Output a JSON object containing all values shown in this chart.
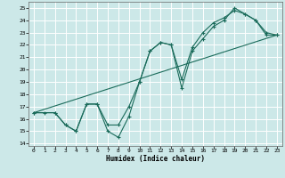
{
  "xlabel": "Humidex (Indice chaleur)",
  "xlim": [
    -0.5,
    23.5
  ],
  "ylim": [
    13.8,
    25.5
  ],
  "xticks": [
    0,
    1,
    2,
    3,
    4,
    5,
    6,
    7,
    8,
    9,
    10,
    11,
    12,
    13,
    14,
    15,
    16,
    17,
    18,
    19,
    20,
    21,
    22,
    23
  ],
  "yticks": [
    14,
    15,
    16,
    17,
    18,
    19,
    20,
    21,
    22,
    23,
    24,
    25
  ],
  "bg_color": "#cce8e8",
  "grid_color": "#ffffff",
  "line_color": "#1a6b5a",
  "line1_x": [
    0,
    1,
    2,
    3,
    4,
    5,
    6,
    7,
    8,
    9,
    10,
    11,
    12,
    13,
    14,
    15,
    16,
    17,
    18,
    19,
    20,
    21,
    22,
    23
  ],
  "line1_y": [
    16.5,
    16.5,
    16.5,
    15.5,
    15.0,
    17.2,
    17.2,
    15.0,
    14.5,
    16.2,
    19.0,
    21.5,
    22.2,
    22.0,
    18.5,
    21.5,
    22.5,
    23.5,
    24.0,
    25.0,
    24.5,
    24.0,
    23.0,
    22.8
  ],
  "line2_x": [
    0,
    2,
    3,
    4,
    5,
    6,
    7,
    8,
    9,
    10,
    11,
    12,
    13,
    14,
    15,
    16,
    17,
    18,
    19,
    20,
    21,
    22,
    23
  ],
  "line2_y": [
    16.5,
    16.5,
    15.5,
    15.0,
    17.2,
    17.2,
    15.5,
    15.5,
    17.0,
    19.0,
    21.5,
    22.2,
    22.0,
    19.2,
    21.8,
    23.0,
    23.8,
    24.2,
    24.8,
    24.5,
    24.0,
    22.8,
    22.8
  ],
  "line3_x": [
    0,
    23
  ],
  "line3_y": [
    16.5,
    22.8
  ]
}
